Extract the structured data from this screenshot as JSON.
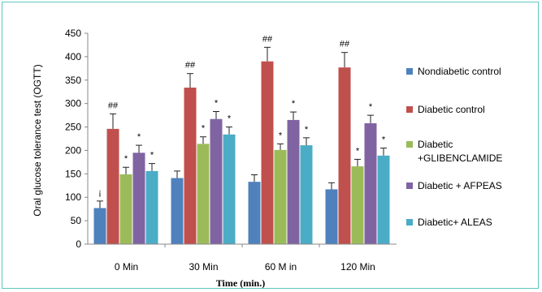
{
  "chart_data": {
    "type": "bar",
    "ylabel": "Oral glucose tolerance test (OGTT)",
    "xlabel": "Time (min.)",
    "ylim": [
      0,
      450
    ],
    "yticks": [
      0,
      50,
      100,
      150,
      200,
      250,
      300,
      350,
      400,
      450
    ],
    "categories": [
      "0 Min",
      "30 Min",
      "60 M in",
      "120 Min"
    ],
    "legend_position": "right",
    "series": [
      {
        "name": "Nondiabetic control",
        "color": "#4f81bd",
        "values": [
          77,
          141,
          133,
          117
        ],
        "errors": [
          15,
          15,
          15,
          14
        ],
        "annotations": [
          "¡",
          "",
          "",
          ""
        ]
      },
      {
        "name": "Diabetic control",
        "color": "#c0504d",
        "values": [
          246,
          334,
          390,
          377
        ],
        "errors": [
          32,
          30,
          30,
          32
        ],
        "annotations": [
          "##",
          "##",
          "##",
          "##"
        ]
      },
      {
        "name": "Diabetic\n+GLIBENCLAMIDE",
        "color": "#9bbb59",
        "values": [
          149,
          214,
          201,
          166
        ],
        "errors": [
          15,
          15,
          13,
          15
        ],
        "annotations": [
          "*",
          "*",
          "*",
          "*"
        ]
      },
      {
        "name": "Diabetic + AFPEAS",
        "color": "#8064a2",
        "values": [
          195,
          267,
          265,
          258
        ],
        "errors": [
          16,
          16,
          17,
          17
        ],
        "annotations": [
          "*",
          "*",
          "*",
          "*"
        ]
      },
      {
        "name": "Diabetic+ ALEAS",
        "color": "#4bacc6",
        "values": [
          156,
          234,
          211,
          189
        ],
        "errors": [
          16,
          16,
          16,
          16
        ],
        "annotations": [
          "*",
          "*",
          "*",
          "*"
        ]
      }
    ]
  }
}
